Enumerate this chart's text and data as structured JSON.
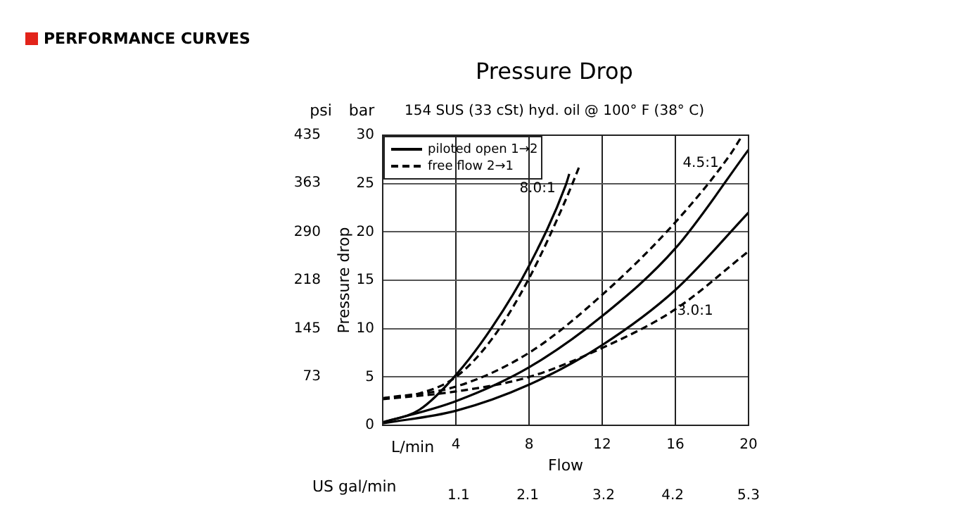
{
  "chart_data": {
    "type": "line",
    "title": "Pressure Drop",
    "subtitle": "154 SUS (33 cSt) hyd. oil @ 100° F (38° C)",
    "xlabel": "Flow",
    "ylabel": "Pressure drop",
    "y2label": "psi",
    "x2label": "US gal/min",
    "annotations": [
      "PERFORMANCE CURVES",
      "bar",
      "L/min",
      "8.0:1",
      "4.5:1",
      "3.0:1"
    ],
    "xlim": [
      0,
      20
    ],
    "xticks": [
      4,
      8,
      12,
      16,
      20
    ],
    "ylim": [
      0,
      30
    ],
    "yticks": [
      0,
      5,
      10,
      15,
      20,
      25,
      30
    ],
    "y2lim": [
      0,
      435
    ],
    "y2ticks": [
      73,
      145,
      218,
      290,
      363,
      435
    ],
    "x2lim": [
      0,
      5.3
    ],
    "x2ticks": [
      1.1,
      2.1,
      3.2,
      4.2,
      5.3
    ],
    "grid": true,
    "legend": "top left",
    "series": [
      {
        "name": "piloted open 1→2",
        "color": "#000000",
        "line_style": "solid",
        "x": [
          0,
          2,
          4,
          6,
          8,
          10,
          10.2
        ],
        "values": [
          0.3,
          1.6,
          5.2,
          10.2,
          16.5,
          24.8,
          26
        ]
      },
      {
        "name": "free flow 2→1",
        "color": "#000000",
        "line_style": "dashed",
        "x": [
          0,
          2,
          4,
          6,
          8,
          10,
          10.8
        ],
        "values": [
          2.8,
          3.3,
          5,
          9,
          15.2,
          23.3,
          27
        ]
      },
      {
        "color": "#000000",
        "line_style": "solid",
        "x": [
          0,
          4,
          8,
          12,
          16,
          20
        ],
        "values": [
          0.3,
          2.5,
          6,
          11.3,
          18.3,
          28.5
        ]
      },
      {
        "color": "#000000",
        "line_style": "dashed",
        "x": [
          0,
          4,
          8,
          12,
          16,
          19,
          19.6
        ],
        "values": [
          2.8,
          4,
          7.5,
          13.5,
          21,
          28,
          29.8
        ]
      },
      {
        "color": "#000000",
        "line_style": "solid",
        "x": [
          0,
          4,
          8,
          12,
          16,
          20
        ],
        "values": [
          0.2,
          1.5,
          4.2,
          8.3,
          14,
          22
        ]
      },
      {
        "color": "#000000",
        "line_style": "dashed",
        "x": [
          0,
          4,
          8,
          12,
          16,
          20
        ],
        "values": [
          2.7,
          3.5,
          5,
          8,
          12,
          18
        ]
      }
    ]
  }
}
